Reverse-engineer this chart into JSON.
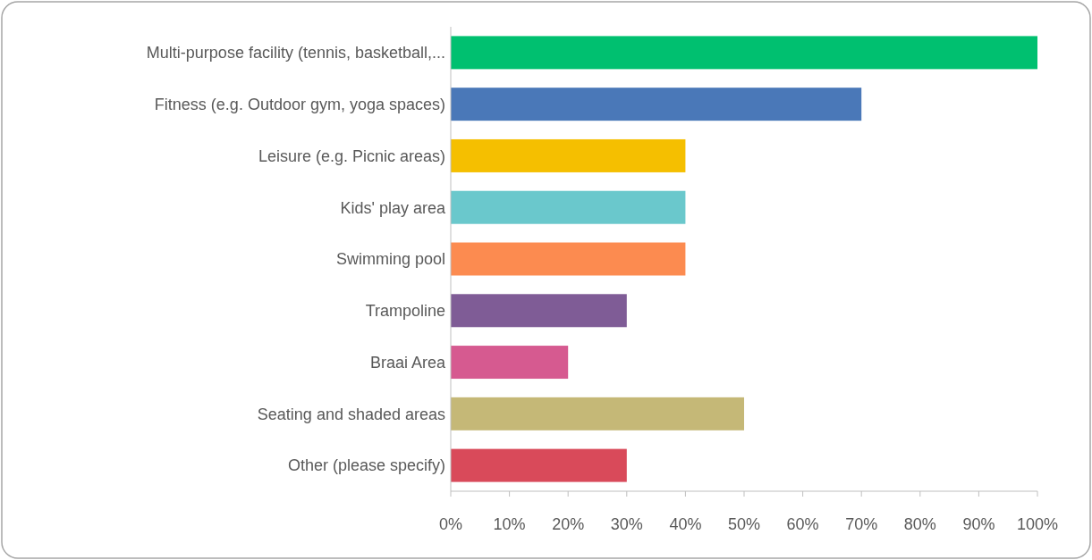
{
  "chart_data": {
    "type": "bar",
    "orientation": "horizontal",
    "categories": [
      "Multi-purpose facility (tennis, basketball,...",
      "Fitness (e.g. Outdoor gym, yoga spaces)",
      "Leisure (e.g. Picnic areas)",
      "Kids' play area",
      "Swimming pool",
      "Trampoline",
      "Braai Area",
      "Seating and shaded areas",
      "Other (please specify)"
    ],
    "values": [
      100,
      70,
      40,
      40,
      40,
      30,
      20,
      50,
      30
    ],
    "colors": [
      "#00c070",
      "#4a78b8",
      "#f5bf00",
      "#6ac8cc",
      "#fc8b50",
      "#7f5c96",
      "#d65a90",
      "#c5b877",
      "#d94a5a"
    ],
    "xlim": [
      0,
      100
    ],
    "xticks": [
      {
        "value": 0,
        "label": "0%"
      },
      {
        "value": 10,
        "label": "10%"
      },
      {
        "value": 20,
        "label": "20%"
      },
      {
        "value": 30,
        "label": "30%"
      },
      {
        "value": 40,
        "label": "40%"
      },
      {
        "value": 50,
        "label": "50%"
      },
      {
        "value": 60,
        "label": "60%"
      },
      {
        "value": 70,
        "label": "70%"
      },
      {
        "value": 80,
        "label": "80%"
      },
      {
        "value": 90,
        "label": "90%"
      },
      {
        "value": 100,
        "label": "100%"
      }
    ],
    "grid": false
  }
}
